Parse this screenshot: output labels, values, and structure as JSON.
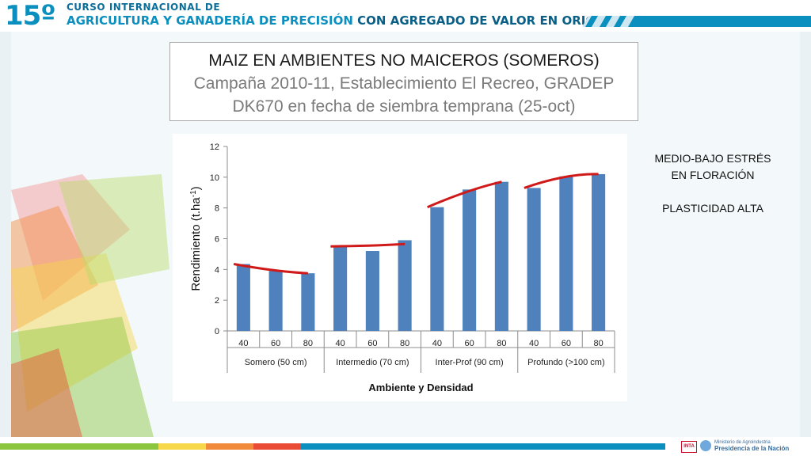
{
  "header": {
    "number": "15º",
    "line1": "CURSO INTERNACIONAL DE",
    "line2a": "AGRICULTURA Y GANADERÍA DE PRECISIÓN",
    "line2b": "CON AGREGADO DE VALOR EN ORIGEN"
  },
  "title_box": {
    "line1": "MAIZ EN AMBIENTES NO MAICEROS (SOMEROS)",
    "line2": "Campaña 2010-11, Establecimiento El Recreo, GRADEP",
    "line3": "DK670 en fecha de siembra temprana (25-oct)"
  },
  "notes": {
    "line1": "MEDIO-BAJO ESTRÉS",
    "line2": "EN FLORACIÓN",
    "line3": "PLASTICIDAD ALTA"
  },
  "footer": {
    "inta": "INTA",
    "ministry_line1": "Ministerio de Agroindustria",
    "ministry_line2": "Presidencia de la Nación"
  },
  "colors": {
    "bar": "#4f81bd",
    "trend": "#d01919",
    "brand": "#0a8fbf"
  },
  "chart_data": {
    "type": "bar",
    "xlabel": "Ambiente y Densidad",
    "ylabel": "Rendimiento (t.ha",
    "ylabel_sup": "-1",
    "ylabel_end": ")",
    "ylim": [
      0,
      12
    ],
    "yticks": [
      0,
      2,
      4,
      6,
      8,
      10,
      12
    ],
    "grid": false,
    "groups": [
      {
        "name": "Somero (50 cm)",
        "categories": [
          "40",
          "60",
          "80"
        ],
        "values": [
          4.35,
          3.9,
          3.75
        ],
        "trend": [
          4.35,
          3.95,
          3.75
        ]
      },
      {
        "name": "Intermedio (70 cm)",
        "categories": [
          "40",
          "60",
          "80"
        ],
        "values": [
          5.5,
          5.2,
          5.9
        ],
        "trend": [
          5.5,
          5.55,
          5.65
        ]
      },
      {
        "name": "Inter-Prof (90 cm)",
        "categories": [
          "40",
          "60",
          "80"
        ],
        "values": [
          8.05,
          9.2,
          9.7
        ],
        "trend": [
          8.05,
          9.05,
          9.7
        ]
      },
      {
        "name": "Profundo (>100 cm)",
        "categories": [
          "40",
          "60",
          "80"
        ],
        "values": [
          9.3,
          10.05,
          10.2
        ],
        "trend": [
          9.3,
          10.0,
          10.2
        ]
      }
    ]
  }
}
